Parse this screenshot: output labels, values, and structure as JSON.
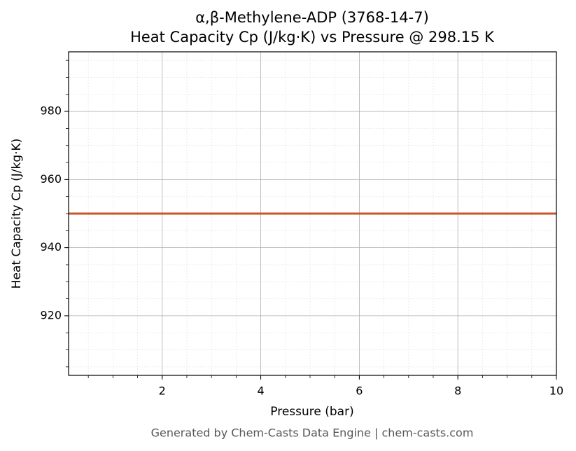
{
  "chart_data": {
    "type": "line",
    "title": "α,β-Methylene-ADP (3768-14-7)",
    "subtitle": "Heat Capacity Cp (J/kg·K) vs Pressure @ 298.15 K",
    "x_label": "Pressure (bar)",
    "y_label": "Heat Capacity Cp (J/kg·K)",
    "footer": "Generated by Chem-Casts Data Engine | chem-casts.com",
    "x": [
      0.1,
      10
    ],
    "series": [
      {
        "name": "Cp",
        "color": "#c8552b",
        "values": [
          950,
          950
        ]
      }
    ],
    "xlim": [
      0.1,
      10
    ],
    "xticks": [
      2,
      4,
      6,
      8,
      10
    ],
    "ylim": [
      902.5,
      997.5
    ],
    "yticks": [
      920,
      940,
      960,
      980
    ],
    "grid": true,
    "minor_grid": true
  }
}
